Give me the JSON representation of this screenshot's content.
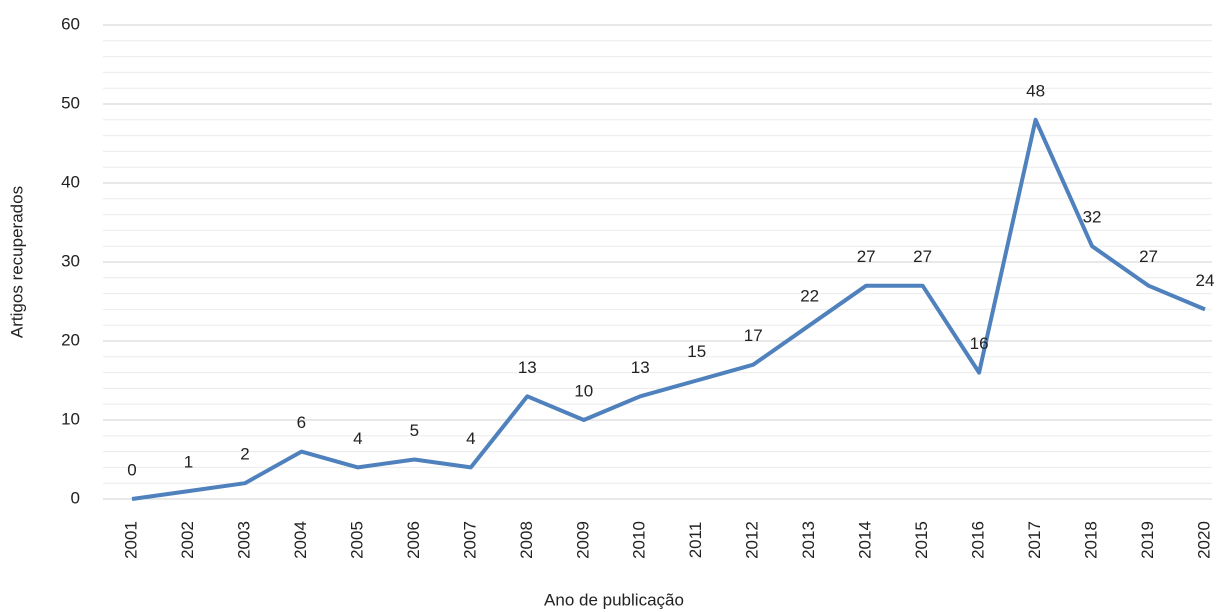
{
  "chart_data": {
    "type": "line",
    "x_label": "Ano de publicação",
    "y_label": "Artigos recuperados",
    "categories": [
      "2001",
      "2002",
      "2003",
      "2004",
      "2005",
      "2006",
      "2007",
      "2008",
      "2009",
      "2010",
      "2011",
      "2012",
      "2013",
      "2014",
      "2015",
      "2016",
      "2017",
      "2018",
      "2019",
      "2020"
    ],
    "series": [
      {
        "name": "Artigos",
        "color": "#4f81bd",
        "values": [
          0,
          1,
          2,
          6,
          4,
          5,
          4,
          13,
          10,
          13,
          15,
          17,
          22,
          27,
          27,
          16,
          48,
          32,
          27,
          24
        ]
      }
    ],
    "ylim": [
      0,
      60
    ],
    "yticks": [
      0,
      10,
      20,
      30,
      40,
      50,
      60
    ],
    "minor_yticks": [
      2,
      4,
      6,
      8,
      12,
      14,
      16,
      18,
      22,
      24,
      26,
      28,
      32,
      34,
      36,
      38,
      42,
      44,
      46,
      48,
      52,
      54,
      56,
      58
    ],
    "grid": true,
    "data_labels": true
  }
}
